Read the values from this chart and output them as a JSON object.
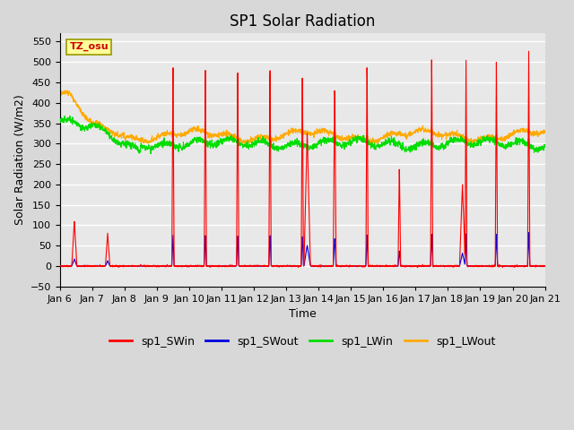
{
  "title": "SP1 Solar Radiation",
  "xlabel": "Time",
  "ylabel": "Solar Radiation (W/m2)",
  "ylim": [
    -50,
    570
  ],
  "yticks": [
    -50,
    0,
    50,
    100,
    150,
    200,
    250,
    300,
    350,
    400,
    450,
    500,
    550
  ],
  "xtick_labels": [
    "Jan 6",
    "Jan 7",
    "Jan 8",
    "Jan 9",
    "Jan 10",
    "Jan 11",
    "Jan 12",
    "Jan 13",
    "Jan 14",
    "Jan 15",
    "Jan 16",
    "Jan 17",
    "Jan 18",
    "Jan 19",
    "Jan 20",
    "Jan 21"
  ],
  "colors": {
    "SWin": "#ff0000",
    "SWout": "#0000dd",
    "LWin": "#00dd00",
    "LWout": "#ffaa00"
  },
  "legend_labels": [
    "sp1_SWin",
    "sp1_SWout",
    "sp1_LWin",
    "sp1_LWout"
  ],
  "tz_label": "TZ_osu",
  "bg_color": "#e8e8e8",
  "grid_color": "#ffffff",
  "title_fontsize": 12,
  "label_fontsize": 9,
  "tick_fontsize": 8,
  "legend_fontsize": 9,
  "line_width": 0.8
}
